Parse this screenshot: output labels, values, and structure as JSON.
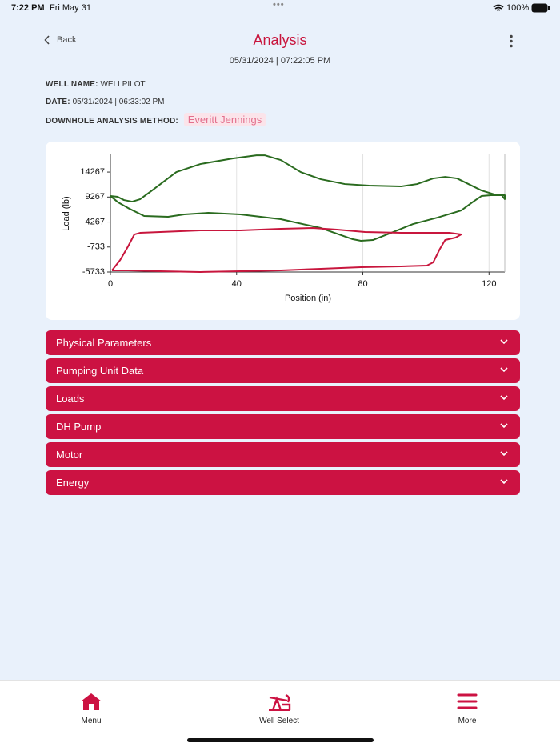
{
  "status_bar": {
    "time": "7:22 PM",
    "date": "Fri May 31",
    "battery": "100%"
  },
  "header": {
    "back": "Back",
    "title": "Analysis",
    "timestamp": "05/31/2024 | 07:22:05 PM"
  },
  "well_info": {
    "fields": [
      {
        "label": "WELL NAME:",
        "value": "WELLPILOT"
      },
      {
        "label": "DATE:",
        "value": "05/31/2024 | 06:33:02 PM"
      },
      {
        "label": "DOWNHOLE ANALYSIS METHOD:",
        "value": "Everitt Jennings"
      }
    ]
  },
  "chart_data": {
    "type": "line",
    "x_label": "Position (in)",
    "y_label": "Load (lb)",
    "xlim": [
      0,
      125
    ],
    "ylim": [
      -5733,
      17800
    ],
    "xticks": [
      0,
      40,
      80,
      120
    ],
    "yticks": [
      -5733,
      -733,
      4267,
      9267,
      14267
    ],
    "xgrid": true,
    "series": [
      {
        "color": "#2a6b1f",
        "x": [
          0,
          2.3,
          4.3,
          6.9,
          9.4,
          13.2,
          20.9,
          28.5,
          38.7,
          46.3,
          48.9,
          54,
          60.3,
          66.7,
          74.3,
          82,
          92.1,
          97.2,
          102.3,
          106.1,
          109.9,
          117.6,
          122.6,
          125,
          125,
          123.9,
          120.6,
          117.6,
          115,
          111.2,
          103.6,
          95.9,
          89.6,
          83.2,
          79.4,
          76.8,
          66.7,
          54,
          41.2,
          31,
          23.4,
          18.3,
          10.7,
          5.6,
          2.5,
          0
        ],
        "values": [
          9467,
          9307,
          8667,
          8347,
          8827,
          10587,
          14267,
          15867,
          16987,
          17627,
          17627,
          16667,
          14267,
          12827,
          11867,
          11547,
          11387,
          11867,
          12987,
          13307,
          12987,
          10587,
          9627,
          9627,
          8827,
          9787,
          9627,
          9467,
          8347,
          6587,
          5147,
          3867,
          2267,
          667,
          507,
          827,
          3067,
          4827,
          5787,
          6107,
          5787,
          5307,
          5467,
          7067,
          8187,
          9467
        ]
      },
      {
        "color": "#c8163d",
        "x": [
          0.5,
          3.1,
          5.6,
          7.6,
          9.4,
          15.8,
          28.5,
          41.2,
          54,
          64.1,
          71.8,
          80.7,
          92.1,
          102.3,
          107.4,
          111.2,
          109.4,
          106.1,
          104.3,
          102.3,
          100.3,
          92.1,
          79.4,
          66.7,
          54,
          41.2,
          28.5,
          15.8,
          5.6,
          0.5
        ],
        "values": [
          -5413,
          -3333,
          -613,
          1787,
          2107,
          2267,
          2587,
          2587,
          2907,
          3067,
          2747,
          2267,
          2107,
          2107,
          2107,
          1787,
          1147,
          667,
          -1253,
          -3813,
          -4453,
          -4613,
          -4773,
          -5093,
          -5413,
          -5573,
          -5733,
          -5573,
          -5413,
          -5413
        ]
      }
    ]
  },
  "sections": [
    "Physical Parameters",
    "Pumping Unit Data",
    "Loads",
    "DH Pump",
    "Motor",
    "Energy"
  ],
  "tab_bar": {
    "items": [
      "Menu",
      "Well Select",
      "More"
    ]
  }
}
